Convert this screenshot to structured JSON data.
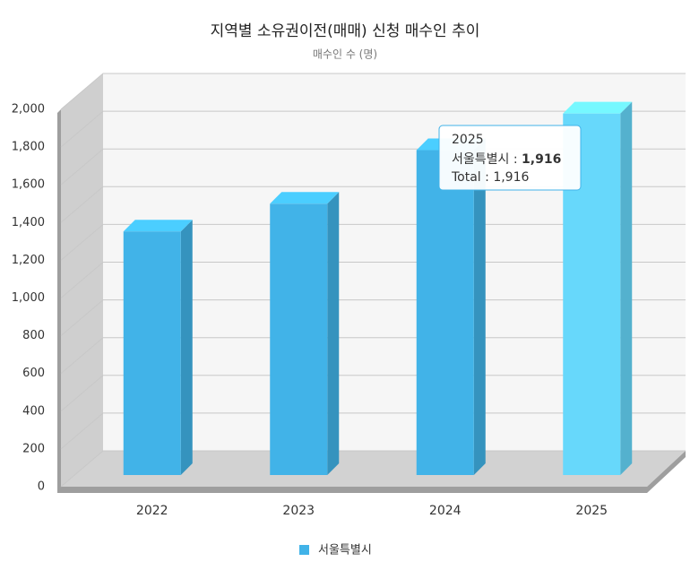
{
  "chart_data": {
    "type": "bar3d",
    "title": "지역별 소유권이전(매매) 신청 매수인 추이",
    "subtitle": "매수인 수 (명)",
    "categories": [
      "2022",
      "2023",
      "2024",
      "2025"
    ],
    "series": [
      {
        "name": "서울특별시",
        "color": "#41b3e8",
        "values": [
          1291,
          1438,
          1722,
          1916
        ]
      }
    ],
    "ylim": [
      0,
      2000
    ],
    "yticks": [
      0,
      200,
      400,
      600,
      800,
      {
        "value": 1000,
        "label": "1,000"
      },
      {
        "value": 1200,
        "label": "1,200"
      },
      {
        "value": 1400,
        "label": "1,400"
      },
      {
        "value": 1600,
        "label": "1,600"
      },
      {
        "value": 1800,
        "label": "1,800"
      },
      {
        "value": 2000,
        "label": "2,000"
      }
    ],
    "grid": true,
    "legend": "bottom",
    "hover": {
      "index": 3,
      "color": "#67d8fb"
    },
    "tooltip": {
      "title": "2025",
      "separator": " : ",
      "lines": [
        {
          "label": "서울특별시",
          "value": 1916,
          "value_label": "1,916"
        },
        {
          "label": "Total",
          "value": 1916,
          "value_label": "1,916"
        }
      ]
    }
  }
}
